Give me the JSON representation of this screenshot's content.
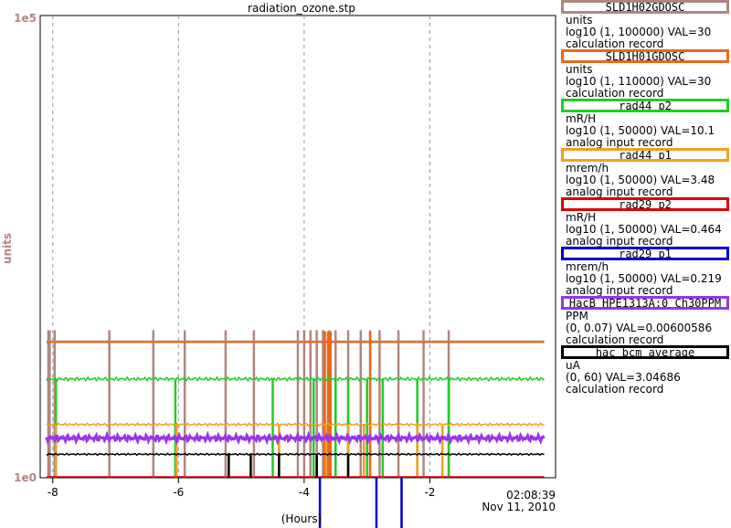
{
  "window": {
    "title": "radiation_ozone.stp"
  },
  "chart_data": {
    "type": "line",
    "title": "radiation_ozone.stp",
    "xlabel": "(Hours)",
    "ylabel": "units",
    "xlim": [
      -8.2,
      0
    ],
    "x_ticks": [
      -8,
      -6,
      -4,
      -2
    ],
    "x_tick_labels": [
      "-8",
      "-6",
      "-4",
      "-2"
    ],
    "end_time": "02:08:39",
    "end_date": "Nov 11, 2010",
    "y_axis": {
      "scale": "log10",
      "min_label": "1e0",
      "max_label": "1e5",
      "color": "#b08680"
    },
    "grid": true,
    "legend_position": "right",
    "series": [
      {
        "name": "SLD1H02GDOSC",
        "units": "units",
        "scale": "log10 (1, 100000) VAL=30",
        "record": "calculation record",
        "color": "#b08680",
        "level": 30,
        "spikes": [
          -8.07,
          -8.05,
          -7.97,
          -7.1,
          -6.4,
          -5.9,
          -5.25,
          -4.8,
          -4.1,
          -4.0,
          -3.9,
          -3.8,
          -3.7,
          -3.6,
          -3.5,
          -3.3,
          -3.1,
          -2.95,
          -2.8,
          -2.5,
          -2.1,
          -1.7
        ]
      },
      {
        "name": "SLD1H01GDOSC",
        "units": "units",
        "scale": "log10 (1, 110000) VAL=30",
        "record": "calculation record",
        "color": "#e8681a",
        "level": 30,
        "spikes": [
          -3.67,
          -3.62,
          -3.58,
          -2.95
        ]
      },
      {
        "name": "rad44_p2",
        "units": "mR/H",
        "scale": "log10 (1, 50000) VAL=10.1",
        "record": "analog input record",
        "color": "#22cc22",
        "level": 10.1,
        "spikes": [
          -7.95,
          -6.05,
          -4.5,
          -3.85,
          -3.5,
          -3.3,
          -3.0,
          -2.75,
          -2.2,
          -1.7
        ]
      },
      {
        "name": "rad44_p1",
        "units": "mrem/h",
        "scale": "log10 (1, 50000) VAL=3.48",
        "record": "analog input record",
        "color": "#f0a020",
        "level": 3.48,
        "spikes": [
          -7.95,
          -6.03,
          -4.4,
          -3.65,
          -3.3,
          -3.05,
          -2.2,
          -1.8
        ]
      },
      {
        "name": "rad29_p2",
        "units": "mR/H",
        "scale": "log10 (1, 50000) VAL=0.464",
        "record": "analog input record",
        "color": "#dd0000",
        "level": 0.464,
        "spikes": []
      },
      {
        "name": "rad29_p1",
        "units": "mrem/h",
        "scale": "log10 (1, 50000) VAL=0.219",
        "record": "analog input record",
        "color": "#0000cc",
        "level": 0.219,
        "spikes": [
          -3.75,
          -2.85,
          -2.45
        ]
      },
      {
        "name": "HacB_HPE1313A:0_Ch30PPM",
        "units": "PPM",
        "scale": "(0, 0.07) VAL=0.00600586",
        "record": "calculation record",
        "color": "#9933ee",
        "level": 0.006,
        "spikes": []
      },
      {
        "name": "hac_bcm_average",
        "units": "uA",
        "scale": "(0, 60) VAL=3.04686",
        "record": "calculation record",
        "color": "#000000",
        "level": 3.05,
        "spikes": [
          -5.2,
          -4.85,
          -4.4,
          -3.8,
          -3.3
        ]
      }
    ]
  }
}
